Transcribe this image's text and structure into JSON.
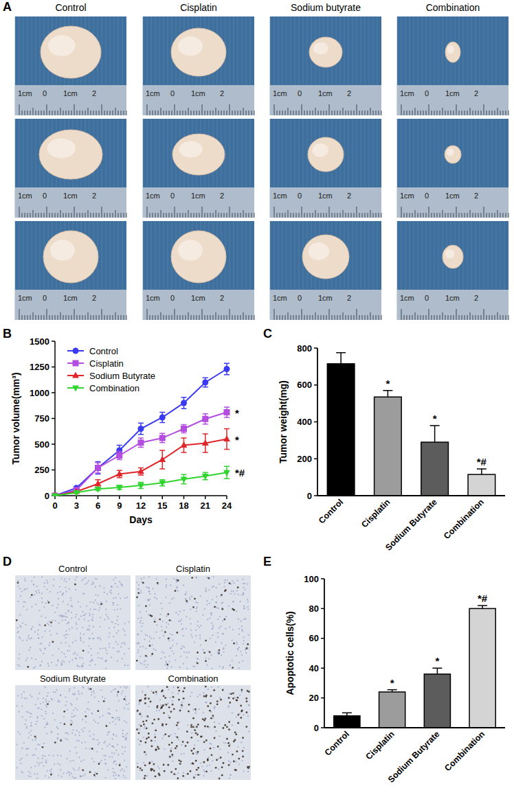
{
  "panel_labels": [
    "A",
    "B",
    "C",
    "D",
    "E"
  ],
  "photo_panel": {
    "columns": [
      "Control",
      "Cisplatin",
      "Sodium butyrate",
      "Combination"
    ],
    "ruler_labels": [
      "1cm",
      "0",
      "1cm",
      "2"
    ]
  },
  "histology_panel": {
    "titles": [
      "Control",
      "Cisplatin",
      "Sodium Butyrate",
      "Combination"
    ]
  },
  "chart_data": [
    {
      "type": "line",
      "x_label": "Days",
      "y_label": "Tumor volume(mm³)",
      "x": [
        0,
        3,
        6,
        9,
        12,
        15,
        18,
        21,
        24
      ],
      "xlim": [
        0,
        24
      ],
      "xticks": [
        0,
        3,
        6,
        9,
        12,
        15,
        18,
        21,
        24
      ],
      "ylim": [
        0,
        1500
      ],
      "yticks": [
        0,
        250,
        500,
        750,
        1000,
        1250,
        1500
      ],
      "grid": false,
      "legend": "upper left",
      "series": [
        {
          "name": "Control",
          "color": "#3a3af2",
          "marker": "circle",
          "values": [
            0,
            75,
            270,
            440,
            650,
            760,
            900,
            1100,
            1230
          ],
          "errors": [
            0,
            10,
            60,
            50,
            55,
            50,
            55,
            45,
            55
          ]
        },
        {
          "name": "Cisplatin",
          "color": "#b34ee0",
          "marker": "square",
          "values": [
            0,
            55,
            270,
            390,
            515,
            560,
            650,
            745,
            810
          ],
          "errors": [
            0,
            8,
            50,
            40,
            45,
            45,
            40,
            50,
            50
          ],
          "annotation": "*"
        },
        {
          "name": "Sodium Butyrate",
          "color": "#e0262a",
          "marker": "triangle",
          "values": [
            0,
            40,
            115,
            210,
            235,
            350,
            490,
            510,
            550
          ],
          "errors": [
            0,
            8,
            40,
            35,
            35,
            90,
            70,
            90,
            100
          ],
          "annotation": "*"
        },
        {
          "name": "Combination",
          "color": "#2fd42f",
          "marker": "triangle-down",
          "values": [
            0,
            30,
            65,
            80,
            100,
            125,
            160,
            190,
            225
          ],
          "errors": [
            0,
            5,
            15,
            20,
            30,
            30,
            45,
            35,
            60
          ],
          "annotation": "*#"
        }
      ]
    },
    {
      "type": "bar",
      "y_label": "Tumor weight(mg)",
      "categories": [
        "Control",
        "Cisplatin",
        "Sodium Butyrate",
        "Combination"
      ],
      "values": [
        715,
        535,
        290,
        115
      ],
      "errors": [
        60,
        35,
        90,
        30
      ],
      "annotations": [
        null,
        "*",
        "*",
        "*#"
      ],
      "colors": [
        "#000000",
        "#9c9c9c",
        "#5c5c5c",
        "#d4d4d4"
      ],
      "ylim": [
        0,
        800
      ],
      "yticks": [
        0,
        200,
        400,
        600,
        800
      ],
      "grid": false
    },
    {
      "type": "bar",
      "y_label": "Apoptotic cells(%)",
      "categories": [
        "Control",
        "Cisplatin",
        "Sodium Butyrate",
        "Combination"
      ],
      "values": [
        8,
        24,
        36,
        80
      ],
      "errors": [
        2,
        1.5,
        4,
        2
      ],
      "annotations": [
        null,
        "*",
        "*",
        "*#"
      ],
      "colors": [
        "#000000",
        "#9c9c9c",
        "#5c5c5c",
        "#d4d4d4"
      ],
      "ylim": [
        0,
        100
      ],
      "yticks": [
        0,
        20,
        40,
        60,
        80,
        100
      ],
      "grid": false
    }
  ]
}
